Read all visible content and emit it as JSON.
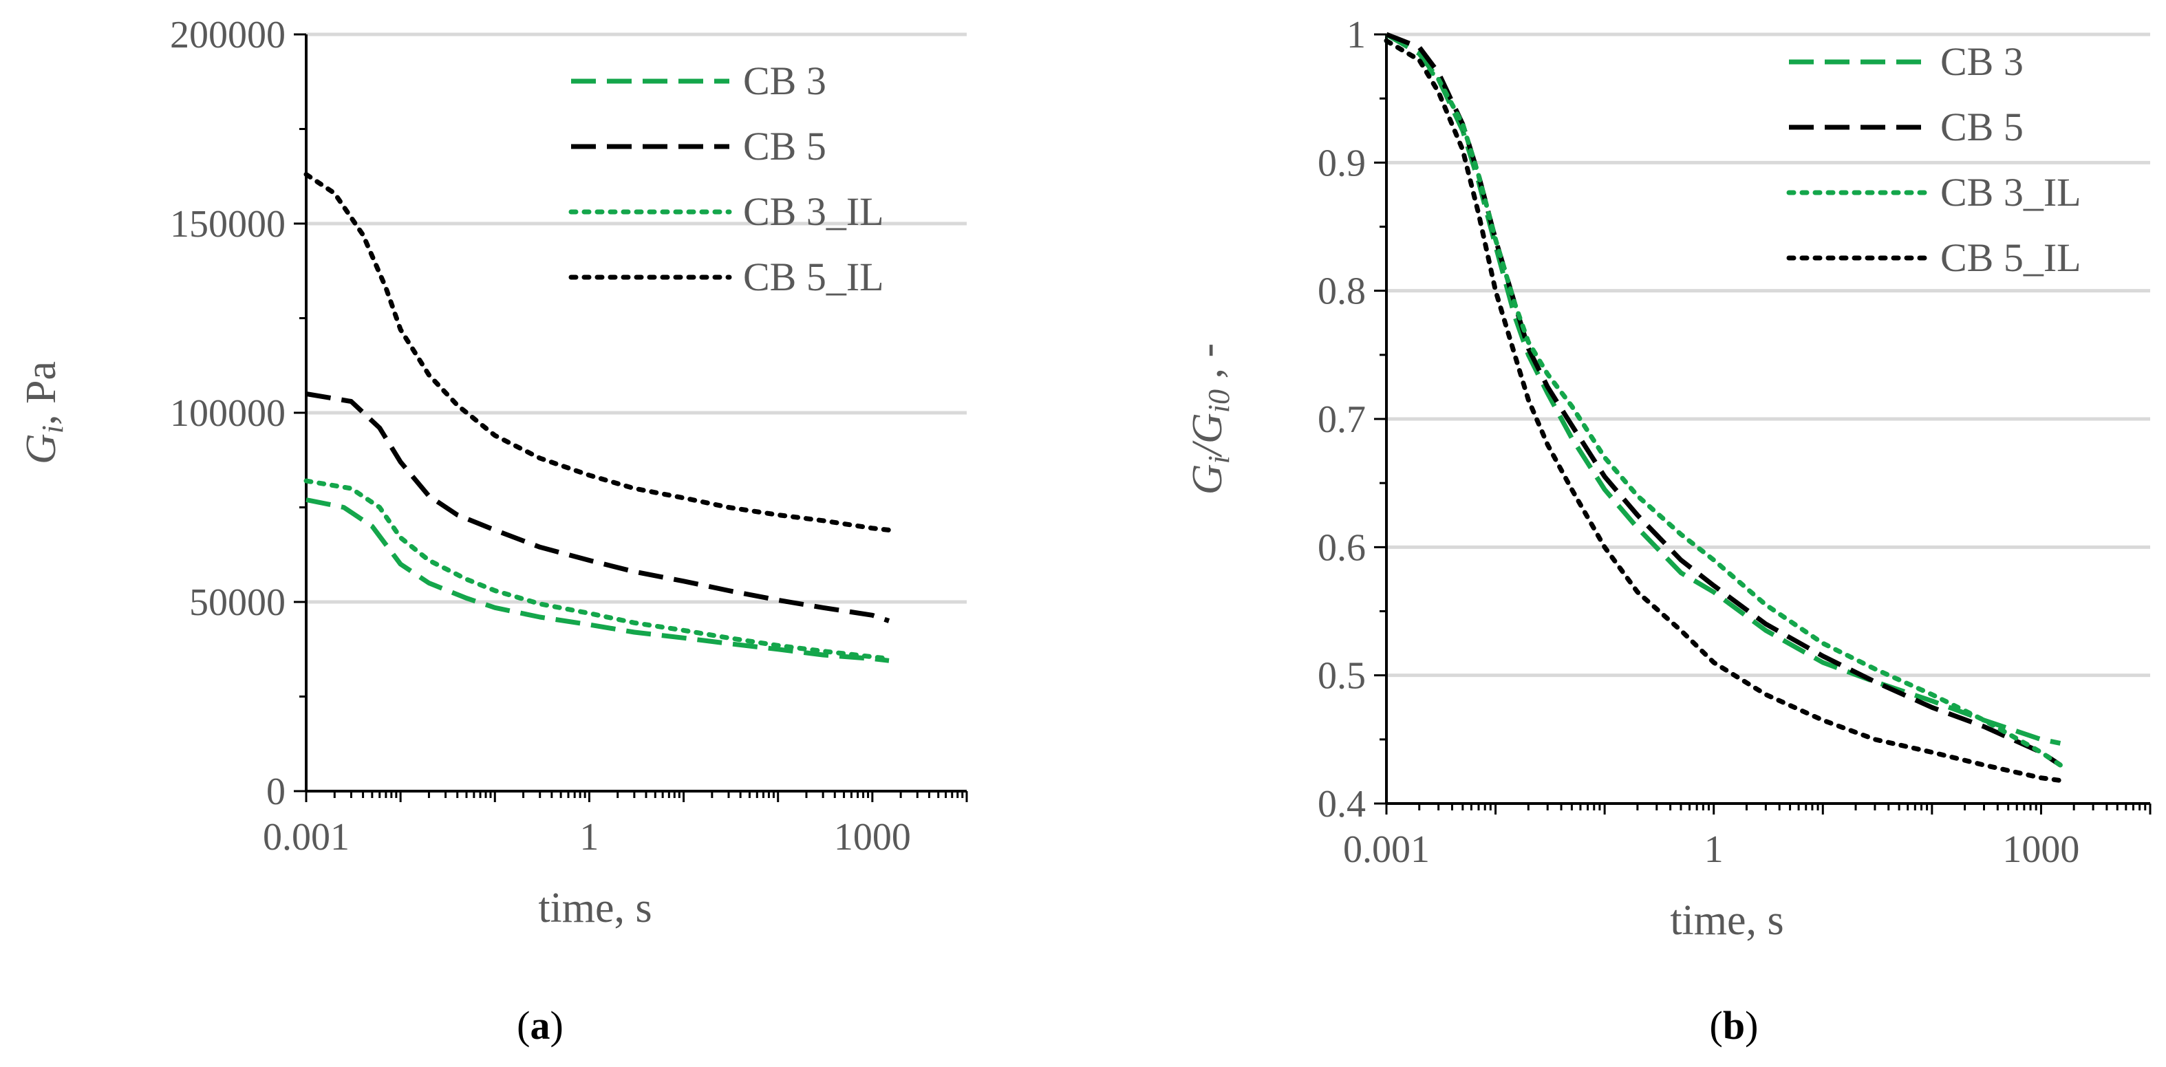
{
  "colors": {
    "green": "#14a64b",
    "black": "#000000"
  },
  "chart_data": [
    {
      "type": "line",
      "panel_label": "a",
      "xscale": "log",
      "xlabel": "time, s",
      "ylabel_main": "G",
      "ylabel_sub": "i",
      "ylabel_rest": ", Pa",
      "xlim": [
        0.001,
        10000
      ],
      "ylim": [
        0,
        200000
      ],
      "yticks": [
        "0",
        "50000",
        "100000",
        "150000",
        "200000"
      ],
      "xticks": [
        "0.001",
        "1",
        "1000"
      ],
      "grid": "horizontal",
      "legend": "top-right",
      "series": [
        {
          "name": "CB 3",
          "style": "dashed",
          "color": "green",
          "x": [
            0.001,
            0.0025,
            0.005,
            0.01,
            0.02,
            0.05,
            0.1,
            0.3,
            1,
            3,
            10,
            30,
            100,
            300,
            1000,
            1500
          ],
          "y": [
            77000,
            75000,
            70000,
            60000,
            55000,
            51000,
            48500,
            46000,
            44000,
            42000,
            40500,
            39000,
            37500,
            36000,
            35000,
            34500
          ]
        },
        {
          "name": "CB 5",
          "style": "dashed",
          "color": "black",
          "x": [
            0.001,
            0.003,
            0.006,
            0.01,
            0.02,
            0.04,
            0.1,
            0.3,
            1,
            3,
            10,
            30,
            100,
            300,
            1000,
            1500
          ],
          "y": [
            105000,
            103000,
            96000,
            87000,
            78000,
            73000,
            69000,
            64500,
            61000,
            58000,
            55500,
            53000,
            50500,
            48500,
            46500,
            45000
          ]
        },
        {
          "name": "CB 3_IL",
          "style": "dotted",
          "color": "green",
          "x": [
            0.001,
            0.003,
            0.006,
            0.01,
            0.02,
            0.05,
            0.1,
            0.3,
            1,
            3,
            10,
            30,
            100,
            300,
            1000,
            1500
          ],
          "y": [
            82000,
            80000,
            75000,
            67000,
            61000,
            56000,
            53000,
            49500,
            47000,
            44500,
            42500,
            40500,
            38500,
            37000,
            35500,
            35000
          ]
        },
        {
          "name": "CB 5_IL",
          "style": "dotted",
          "color": "black",
          "x": [
            0.001,
            0.002,
            0.004,
            0.007,
            0.01,
            0.02,
            0.04,
            0.1,
            0.3,
            1,
            3,
            10,
            30,
            100,
            300,
            1000,
            1500
          ],
          "y": [
            163000,
            158000,
            147000,
            133000,
            122000,
            110000,
            102000,
            94000,
            88000,
            83500,
            80000,
            77500,
            75000,
            73000,
            71500,
            69500,
            69000
          ]
        }
      ],
      "legend_entries": [
        "CB 3",
        "CB 5",
        "CB 3_IL",
        "CB 5_IL"
      ]
    },
    {
      "type": "line",
      "panel_label": "b",
      "xscale": "log",
      "xlabel": "time, s",
      "ylabel_main": "G",
      "ylabel_sub": "i",
      "ylabel_mid": "/G",
      "ylabel_sub2": "i0",
      "ylabel_rest": " , -",
      "xlim": [
        0.001,
        10000
      ],
      "ylim": [
        0.4,
        1
      ],
      "yticks": [
        "0.4",
        "0.5",
        "0.6",
        "0.7",
        "0.8",
        "0.9",
        "1"
      ],
      "xticks": [
        "0.001",
        "1",
        "1000"
      ],
      "grid": "horizontal",
      "legend": "top-right",
      "series": [
        {
          "name": "CB 3",
          "style": "dashed",
          "color": "green",
          "x": [
            0.001,
            0.002,
            0.003,
            0.005,
            0.007,
            0.01,
            0.015,
            0.02,
            0.03,
            0.05,
            0.1,
            0.2,
            0.5,
            1,
            3,
            10,
            30,
            100,
            300,
            1000,
            1500
          ],
          "y": [
            1.0,
            0.985,
            0.965,
            0.925,
            0.885,
            0.835,
            0.78,
            0.75,
            0.72,
            0.685,
            0.645,
            0.615,
            0.58,
            0.565,
            0.535,
            0.51,
            0.495,
            0.48,
            0.465,
            0.45,
            0.447
          ]
        },
        {
          "name": "CB 5",
          "style": "dashed",
          "color": "black",
          "x": [
            0.001,
            0.002,
            0.003,
            0.005,
            0.007,
            0.01,
            0.015,
            0.02,
            0.03,
            0.05,
            0.1,
            0.2,
            0.5,
            1,
            3,
            10,
            30,
            100,
            300,
            1000,
            1500
          ],
          "y": [
            1.0,
            0.99,
            0.97,
            0.93,
            0.89,
            0.84,
            0.79,
            0.755,
            0.725,
            0.695,
            0.655,
            0.625,
            0.59,
            0.57,
            0.54,
            0.515,
            0.495,
            0.475,
            0.46,
            0.44,
            0.43
          ]
        },
        {
          "name": "CB 3_IL",
          "style": "dotted",
          "color": "green",
          "x": [
            0.001,
            0.002,
            0.003,
            0.005,
            0.007,
            0.01,
            0.015,
            0.02,
            0.03,
            0.05,
            0.1,
            0.2,
            0.5,
            1,
            3,
            10,
            30,
            100,
            300,
            1000,
            1500
          ],
          "y": [
            0.995,
            0.98,
            0.965,
            0.93,
            0.89,
            0.84,
            0.79,
            0.76,
            0.735,
            0.71,
            0.67,
            0.64,
            0.61,
            0.59,
            0.555,
            0.525,
            0.505,
            0.485,
            0.465,
            0.44,
            0.43
          ]
        },
        {
          "name": "CB 5_IL",
          "style": "dotted",
          "color": "black",
          "x": [
            0.001,
            0.002,
            0.003,
            0.005,
            0.007,
            0.01,
            0.015,
            0.02,
            0.03,
            0.05,
            0.1,
            0.2,
            0.5,
            1,
            3,
            10,
            30,
            100,
            300,
            1000,
            1500
          ],
          "y": [
            0.995,
            0.98,
            0.955,
            0.91,
            0.86,
            0.8,
            0.75,
            0.715,
            0.68,
            0.645,
            0.6,
            0.565,
            0.535,
            0.51,
            0.485,
            0.465,
            0.45,
            0.44,
            0.43,
            0.42,
            0.418
          ]
        }
      ],
      "legend_entries": [
        "CB 3",
        "CB 5",
        "CB 3_IL",
        "CB 5_IL"
      ]
    }
  ]
}
